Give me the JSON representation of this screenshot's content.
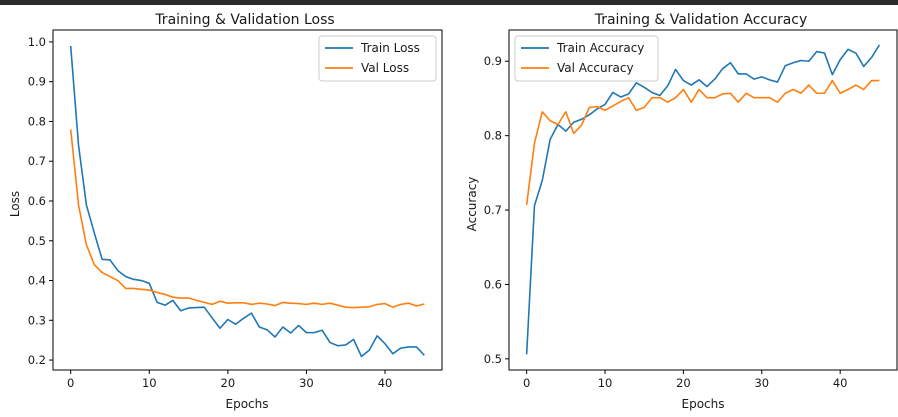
{
  "chart_data": [
    {
      "type": "line",
      "title": "Training & Validation Loss",
      "xlabel": "Epochs",
      "ylabel": "Loss",
      "xlim": [
        -2.25,
        47.25
      ],
      "ylim": [
        0.175,
        1.03
      ],
      "xticks": [
        "0",
        "10",
        "20",
        "30",
        "40"
      ],
      "yticks": [
        "0.2",
        "0.3",
        "0.4",
        "0.5",
        "0.6",
        "0.7",
        "0.8",
        "0.9",
        "1.0"
      ],
      "grid": false,
      "legend_position": "upper right",
      "series": [
        {
          "name": "Train Loss",
          "color": "#1f77b4",
          "values": [
            0.99,
            0.74,
            0.59,
            0.52,
            0.453,
            0.452,
            0.425,
            0.41,
            0.403,
            0.4,
            0.393,
            0.345,
            0.338,
            0.35,
            0.324,
            0.331,
            0.332,
            0.333,
            0.306,
            0.28,
            0.302,
            0.29,
            0.305,
            0.318,
            0.283,
            0.276,
            0.258,
            0.283,
            0.268,
            0.287,
            0.269,
            0.269,
            0.275,
            0.244,
            0.236,
            0.238,
            0.252,
            0.209,
            0.225,
            0.261,
            0.241,
            0.216,
            0.23,
            0.233,
            0.233,
            0.212
          ]
        },
        {
          "name": "Val Loss",
          "color": "#ff7f0e",
          "values": [
            0.78,
            0.59,
            0.49,
            0.44,
            0.42,
            0.41,
            0.4,
            0.38,
            0.38,
            0.378,
            0.376,
            0.37,
            0.365,
            0.358,
            0.356,
            0.356,
            0.35,
            0.345,
            0.34,
            0.348,
            0.343,
            0.344,
            0.344,
            0.34,
            0.343,
            0.341,
            0.337,
            0.345,
            0.343,
            0.342,
            0.34,
            0.343,
            0.34,
            0.343,
            0.338,
            0.333,
            0.332,
            0.333,
            0.334,
            0.34,
            0.342,
            0.333,
            0.34,
            0.343,
            0.336,
            0.341
          ]
        }
      ]
    },
    {
      "type": "line",
      "title": "Training & Validation Accuracy",
      "xlabel": "Epochs",
      "ylabel": "Accuracy",
      "xlim": [
        -2.25,
        47.25
      ],
      "ylim": [
        0.485,
        0.942
      ],
      "xticks": [
        "0",
        "10",
        "20",
        "30",
        "40"
      ],
      "yticks": [
        "0.5",
        "0.6",
        "0.7",
        "0.8",
        "0.9"
      ],
      "grid": false,
      "legend_position": "upper left",
      "series": [
        {
          "name": "Train Accuracy",
          "color": "#1f77b4",
          "values": [
            0.506,
            0.706,
            0.74,
            0.795,
            0.815,
            0.806,
            0.818,
            0.822,
            0.828,
            0.836,
            0.842,
            0.858,
            0.852,
            0.856,
            0.871,
            0.865,
            0.858,
            0.854,
            0.867,
            0.889,
            0.874,
            0.868,
            0.875,
            0.866,
            0.876,
            0.89,
            0.898,
            0.883,
            0.883,
            0.876,
            0.879,
            0.875,
            0.872,
            0.894,
            0.898,
            0.901,
            0.9,
            0.913,
            0.911,
            0.882,
            0.902,
            0.916,
            0.911,
            0.893,
            0.905,
            0.922
          ]
        },
        {
          "name": "Val Accuracy",
          "color": "#ff7f0e",
          "values": [
            0.707,
            0.79,
            0.832,
            0.82,
            0.815,
            0.832,
            0.803,
            0.814,
            0.838,
            0.839,
            0.834,
            0.84,
            0.846,
            0.851,
            0.834,
            0.838,
            0.851,
            0.851,
            0.845,
            0.851,
            0.862,
            0.845,
            0.862,
            0.851,
            0.851,
            0.856,
            0.857,
            0.845,
            0.857,
            0.851,
            0.851,
            0.851,
            0.845,
            0.857,
            0.862,
            0.857,
            0.868,
            0.857,
            0.857,
            0.874,
            0.857,
            0.862,
            0.868,
            0.862,
            0.874,
            0.874
          ]
        }
      ]
    }
  ]
}
